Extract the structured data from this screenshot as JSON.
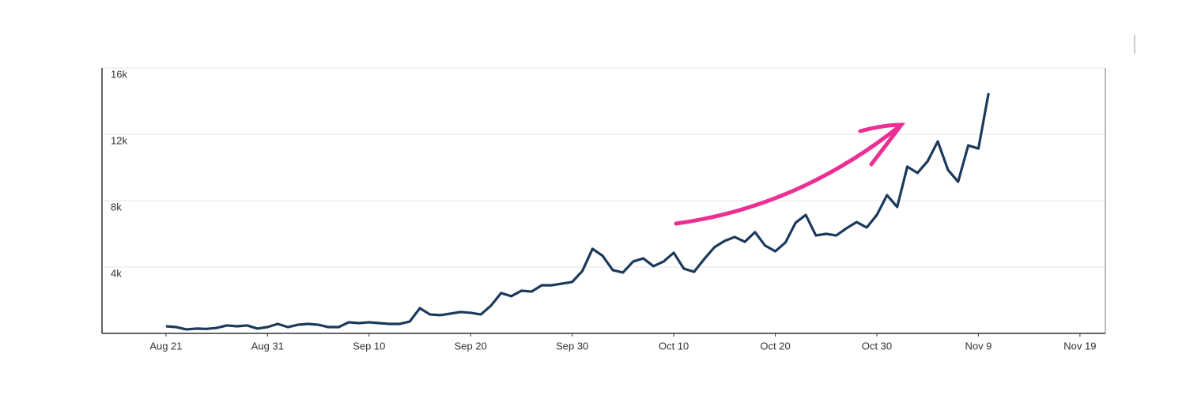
{
  "chart_data": {
    "type": "line",
    "x": [
      0,
      1,
      2,
      3,
      4,
      5,
      6,
      7,
      8,
      9,
      10,
      11,
      12,
      13,
      14,
      15,
      16,
      17,
      18,
      19,
      20,
      21,
      22,
      23,
      24,
      25,
      26,
      27,
      28,
      29,
      30,
      31,
      32,
      33,
      34,
      35,
      36,
      37,
      38,
      39,
      40,
      41,
      42,
      43,
      44,
      45,
      46,
      47,
      48,
      49,
      50,
      51,
      52,
      53,
      54,
      55,
      56,
      57,
      58,
      59,
      60,
      61,
      62,
      63,
      64,
      65,
      66,
      67,
      68,
      69,
      70,
      71,
      72,
      73,
      74,
      75,
      76,
      77,
      78,
      79,
      80,
      81
    ],
    "values": [
      430,
      380,
      240,
      290,
      270,
      330,
      480,
      430,
      480,
      290,
      380,
      570,
      380,
      520,
      570,
      520,
      380,
      380,
      670,
      620,
      670,
      620,
      570,
      570,
      710,
      1520,
      1140,
      1100,
      1190,
      1290,
      1240,
      1140,
      1670,
      2430,
      2240,
      2570,
      2520,
      2900,
      2900,
      3000,
      3100,
      3760,
      5100,
      4670,
      3810,
      3670,
      4330,
      4520,
      4050,
      4330,
      4860,
      3900,
      3710,
      4480,
      5190,
      5570,
      5810,
      5520,
      6100,
      5290,
      4950,
      5480,
      6670,
      7140,
      5900,
      6000,
      5900,
      6330,
      6710,
      6380,
      7140,
      8330,
      7620,
      10050,
      9670,
      10380,
      11570,
      9860,
      9140,
      11330,
      11140,
      14480
    ],
    "color": "#1b3a5c",
    "xlim": [
      -6.3,
      92.5
    ],
    "xticks": [
      {
        "value": 0,
        "label": "Aug 21"
      },
      {
        "value": 10,
        "label": "Aug 31"
      },
      {
        "value": 20,
        "label": "Sep 10"
      },
      {
        "value": 30,
        "label": "Sep 20"
      },
      {
        "value": 40,
        "label": "Sep 30"
      },
      {
        "value": 50,
        "label": "Oct 10"
      },
      {
        "value": 60,
        "label": "Oct 20"
      },
      {
        "value": 70,
        "label": "Oct 30"
      },
      {
        "value": 80,
        "label": "Nov 9"
      },
      {
        "value": 90,
        "label": "Nov 19"
      }
    ],
    "ylim": [
      0,
      16000
    ],
    "yticks": [
      {
        "value": 4000,
        "label": "4k"
      },
      {
        "value": 8000,
        "label": "8k"
      },
      {
        "value": 12000,
        "label": "12k"
      },
      {
        "value": 16000,
        "label": "16k"
      }
    ],
    "grid": true
  }
}
